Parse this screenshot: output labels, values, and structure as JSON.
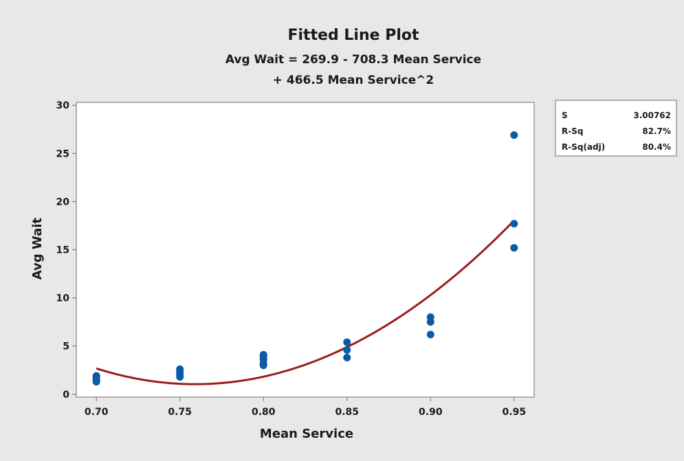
{
  "chart_data": {
    "type": "scatter",
    "title": "Fitted Line Plot",
    "subtitle_lines": [
      "Avg Wait = 269.9 - 708.3 Mean Service",
      "+ 466.5 Mean Service^2"
    ],
    "xlabel": "Mean Service",
    "ylabel": "Avg Wait",
    "xlim": [
      0.688,
      0.962
    ],
    "ylim": [
      -0.3,
      30.3
    ],
    "xticks": [
      0.7,
      0.75,
      0.8,
      0.85,
      0.9,
      0.95
    ],
    "xtick_labels": [
      "0.70",
      "0.75",
      "0.80",
      "0.85",
      "0.90",
      "0.95"
    ],
    "yticks": [
      0,
      5,
      10,
      15,
      20,
      25,
      30
    ],
    "ytick_labels": [
      "0",
      "5",
      "10",
      "15",
      "20",
      "25",
      "30"
    ],
    "grid": false,
    "points": [
      {
        "x": 0.7,
        "y": 1.3
      },
      {
        "x": 0.7,
        "y": 1.5
      },
      {
        "x": 0.7,
        "y": 1.7
      },
      {
        "x": 0.7,
        "y": 1.8
      },
      {
        "x": 0.7,
        "y": 1.9
      },
      {
        "x": 0.75,
        "y": 1.8
      },
      {
        "x": 0.75,
        "y": 2.1
      },
      {
        "x": 0.75,
        "y": 2.4
      },
      {
        "x": 0.75,
        "y": 2.6
      },
      {
        "x": 0.8,
        "y": 3.0
      },
      {
        "x": 0.8,
        "y": 3.2
      },
      {
        "x": 0.8,
        "y": 3.6
      },
      {
        "x": 0.8,
        "y": 3.9
      },
      {
        "x": 0.8,
        "y": 4.1
      },
      {
        "x": 0.85,
        "y": 3.8
      },
      {
        "x": 0.85,
        "y": 4.6
      },
      {
        "x": 0.85,
        "y": 5.4
      },
      {
        "x": 0.9,
        "y": 6.2
      },
      {
        "x": 0.9,
        "y": 7.5
      },
      {
        "x": 0.9,
        "y": 8.0
      },
      {
        "x": 0.95,
        "y": 15.2
      },
      {
        "x": 0.95,
        "y": 17.7
      },
      {
        "x": 0.95,
        "y": 26.9
      }
    ],
    "fit": {
      "intercept": 269.9,
      "linear": -708.3,
      "quadratic": 466.5,
      "x_range": [
        0.7,
        0.95
      ]
    },
    "point_color": "#0b5aa8",
    "fit_color": "#9b1b1b",
    "legend_position": "top-right",
    "stats": [
      {
        "label": "S",
        "value": "3.00762"
      },
      {
        "label": "R-Sq",
        "value": "82.7%"
      },
      {
        "label": "R-Sq(adj)",
        "value": "80.4%"
      }
    ]
  }
}
